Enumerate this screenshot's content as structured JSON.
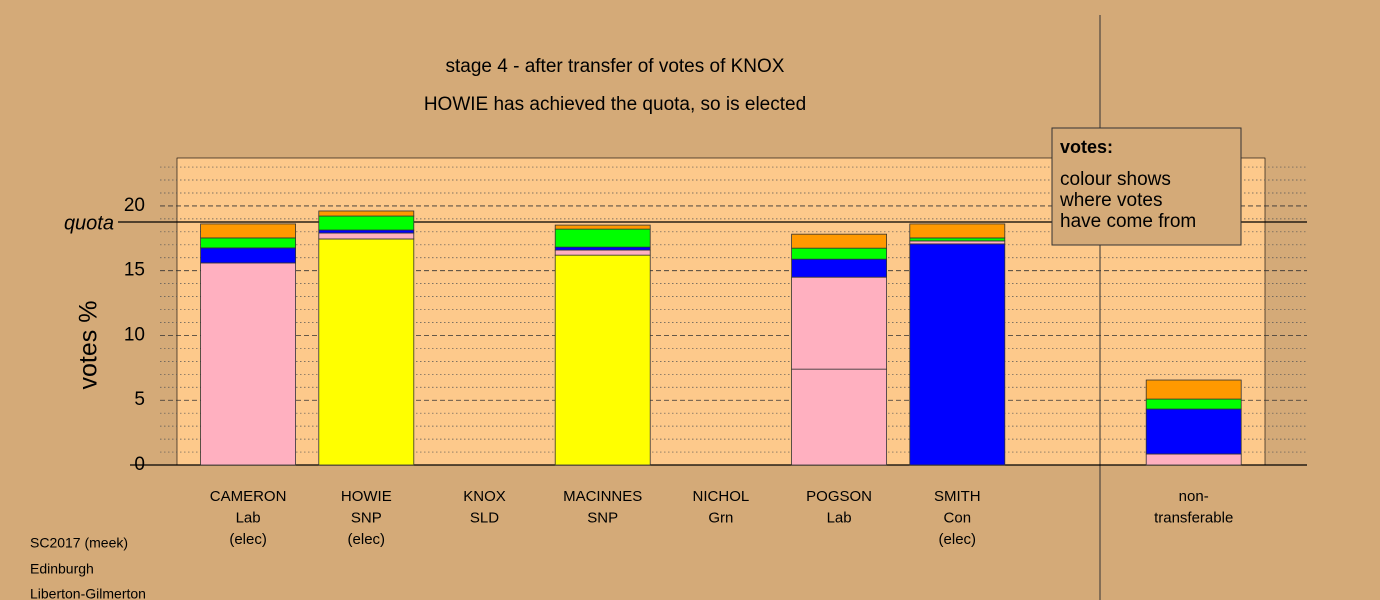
{
  "chart_data": {
    "type": "stacked-segments",
    "title": "stage 4 - after transfer of votes of KNOX",
    "subtitle": "HOWIE has achieved the quota, so is elected",
    "y_label": "votes %",
    "categories": [
      [
        "CAMERON",
        "Lab",
        "(elec)"
      ],
      [
        "HOWIE",
        "SNP",
        "(elec)"
      ],
      [
        "KNOX",
        "SLD"
      ],
      [
        "MACINNES",
        "SNP"
      ],
      [
        "NICHOL",
        "Grn"
      ],
      [
        "POGSON",
        "Lab"
      ],
      [
        "SMITH",
        "Con",
        "(elec)"
      ],
      null,
      [
        "non-",
        "transferable"
      ]
    ],
    "stacks": [
      [
        {
          "value": 15.6,
          "color": "#ffb0c0"
        },
        {
          "value": 1.16,
          "color": "#0000ff"
        },
        {
          "value": 0.77,
          "color": "#00ff00"
        },
        {
          "value": 1.08,
          "color": "#ff9900"
        }
      ],
      [
        {
          "value": 17.45,
          "color": "#ffff00"
        },
        {
          "value": 0.46,
          "color": "#ffb0c0"
        },
        {
          "value": 0.23,
          "color": "#0000ff"
        },
        {
          "value": 1.08,
          "color": "#00ff00"
        },
        {
          "value": 0.39,
          "color": "#ff9900"
        }
      ],
      [],
      [
        {
          "value": 16.2,
          "color": "#ffff00"
        },
        {
          "value": 0.39,
          "color": "#ffb0c0"
        },
        {
          "value": 0.23,
          "color": "#0000ff"
        },
        {
          "value": 1.39,
          "color": "#00ff00"
        },
        {
          "value": 0.31,
          "color": "#ff9900"
        }
      ],
      [],
      [
        {
          "value": 7.4,
          "color": "#ffb0c0"
        },
        {
          "value": 7.1,
          "color": "#ffb0c0"
        },
        {
          "value": 1.39,
          "color": "#0000ff"
        },
        {
          "value": 0.85,
          "color": "#00ff00"
        },
        {
          "value": 1.08,
          "color": "#ff9900"
        }
      ],
      [
        {
          "value": 17.07,
          "color": "#0000ff"
        },
        {
          "value": 0.23,
          "color": "#ffb0c0"
        },
        {
          "value": 0.23,
          "color": "#00ff00"
        },
        {
          "value": 1.08,
          "color": "#ff9900"
        }
      ],
      [],
      [
        {
          "value": 0.85,
          "color": "#ffb0c0"
        },
        {
          "value": 3.47,
          "color": "#0000ff"
        },
        {
          "value": 0.77,
          "color": "#00ff00"
        },
        {
          "value": 1.47,
          "color": "#ff9900"
        }
      ]
    ],
    "ylim": [
      0,
      23.7
    ],
    "yticks": [
      0,
      5,
      10,
      15,
      20
    ],
    "minor_yticks": [
      1,
      2,
      3,
      4,
      6,
      7,
      8,
      9,
      11,
      12,
      13,
      14,
      16,
      17,
      18,
      19,
      21,
      22,
      23
    ],
    "grid": true,
    "quota": {
      "value": 18.76,
      "label": "quota"
    },
    "legend": {
      "title": "votes:",
      "lines": [
        "colour shows",
        "where votes",
        "have come from"
      ]
    },
    "footer": [
      "SC2017 (meek)",
      "Edinburgh",
      "Liberton-Gilmerton"
    ]
  }
}
